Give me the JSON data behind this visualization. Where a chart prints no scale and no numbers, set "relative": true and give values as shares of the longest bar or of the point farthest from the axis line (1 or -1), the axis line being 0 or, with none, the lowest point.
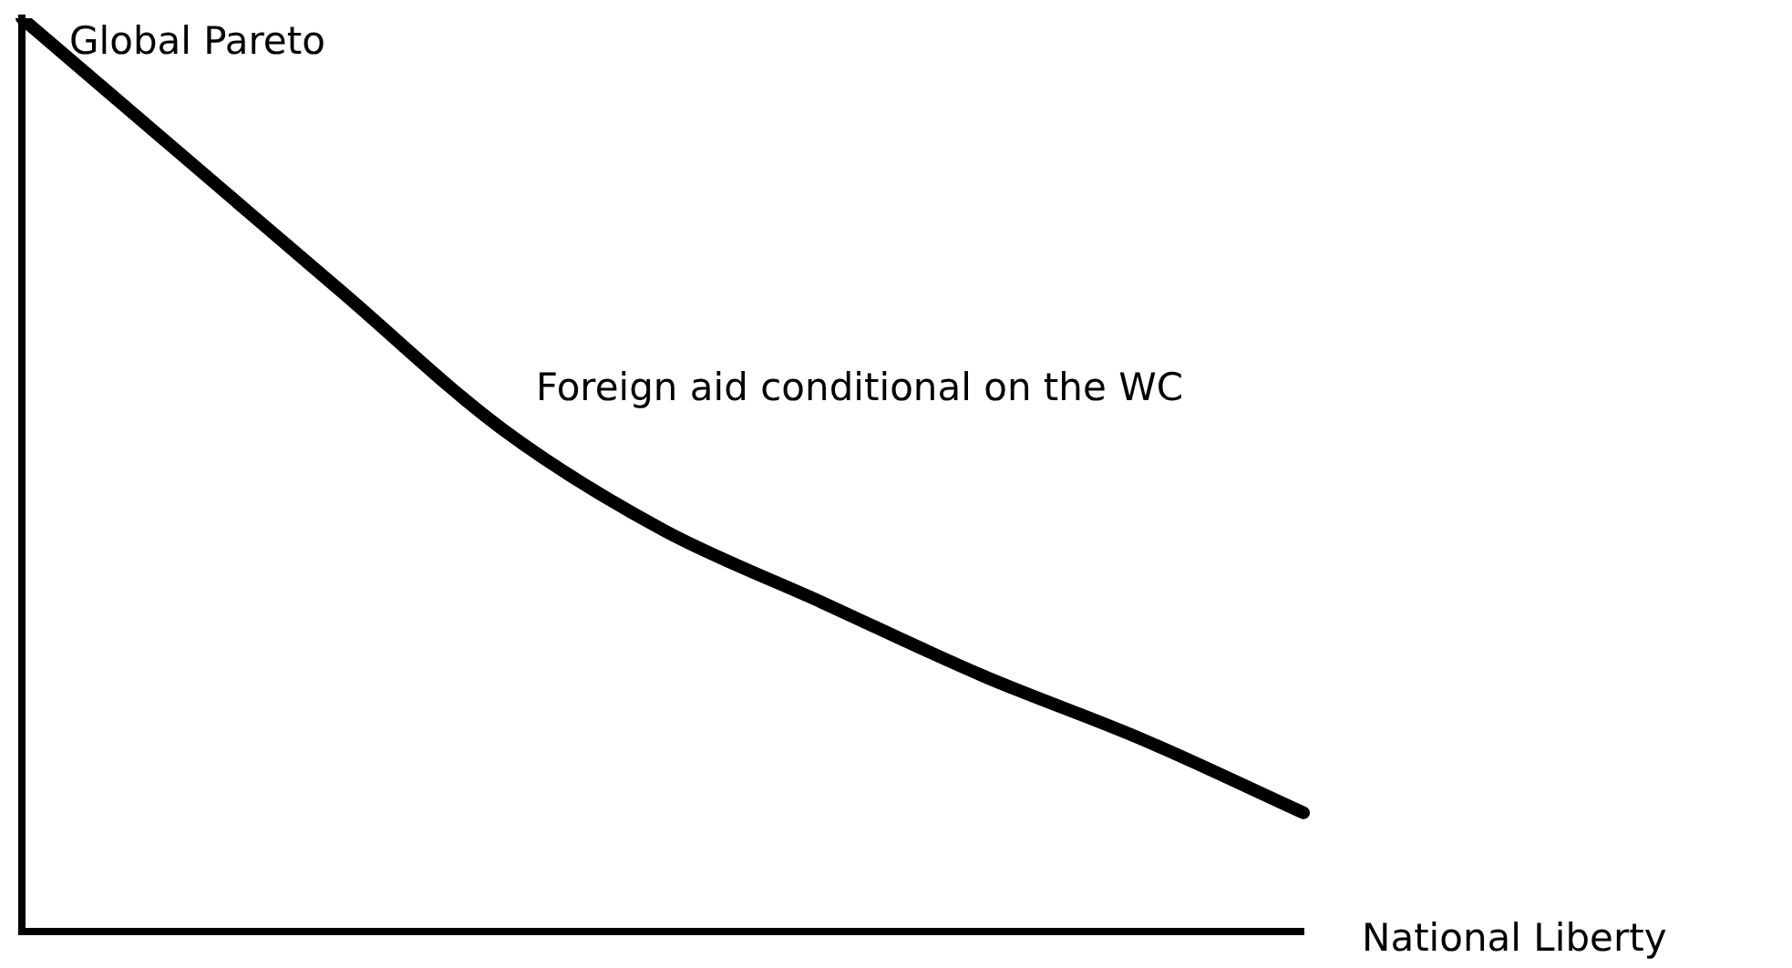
{
  "chart_data": {
    "type": "line",
    "relative": true,
    "ylabel": "Global Pareto",
    "xlabel": "National Liberty",
    "annotations": [
      "Foreign aid conditional on the WC"
    ],
    "categories": [
      null,
      null,
      null,
      null,
      null,
      null,
      null,
      null,
      null
    ],
    "series": [
      {
        "color": "#000000",
        "values": [
          1.0,
          0.85,
          0.7,
          0.55,
          0.44,
          0.36,
          0.28,
          0.21,
          0.13
        ]
      }
    ],
    "grid": false,
    "legend": false,
    "tick_labels": false,
    "marker": "none",
    "line_style": "solid"
  }
}
